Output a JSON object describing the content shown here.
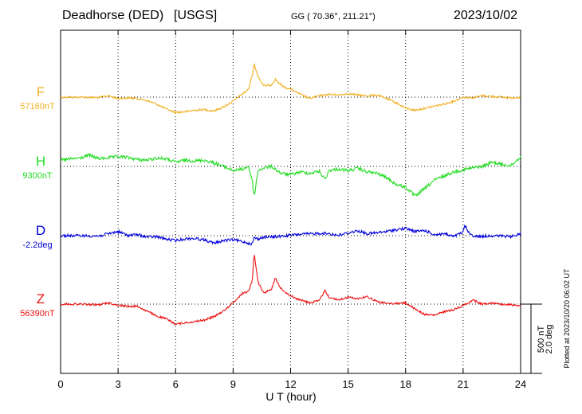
{
  "header": {
    "station": "Deadhorse (DED)",
    "source": "[USGS]",
    "coords": "GG ( 70.36°, 211.21°)",
    "date": "2023/10/02"
  },
  "plotted_note": "Plotted at 2023/10/20 06:02 UT",
  "scale": {
    "nt": "500 nT",
    "deg": "2.0 deg"
  },
  "colors": {
    "F": "#f0b020",
    "H": "#22dd22",
    "D": "#0000dd",
    "Z": "#ee1111"
  },
  "chart_data": {
    "type": "line",
    "xlabel": "U T (hour)",
    "xlim": [
      0,
      24
    ],
    "xticks": [
      "0",
      "3",
      "6",
      "9",
      "12",
      "15",
      "18",
      "21",
      "24"
    ],
    "scale_bar": {
      "value_nT": 500,
      "value_deg": 2.0
    },
    "series": [
      {
        "name": "F",
        "baseline_label": "57160nT",
        "baseline": 57160,
        "x": [
          0,
          1,
          2,
          2.5,
          3,
          3.5,
          4,
          4.5,
          5,
          5.5,
          6,
          6.5,
          7,
          7.5,
          8,
          8.5,
          9,
          9.5,
          9.8,
          10,
          10.1,
          10.3,
          10.6,
          11,
          11.2,
          11.4,
          11.7,
          12,
          12.5,
          13,
          13.5,
          14,
          14.5,
          15,
          15.5,
          16,
          16.5,
          17,
          17.5,
          18,
          18.5,
          19,
          19.5,
          20,
          20.5,
          21,
          21.5,
          22,
          22.5,
          23,
          23.5,
          24
        ],
        "values": [
          57160,
          57160,
          57157,
          57170,
          57150,
          57155,
          57150,
          57135,
          57110,
          57075,
          57050,
          57055,
          57065,
          57070,
          57060,
          57090,
          57130,
          57185,
          57215,
          57320,
          57400,
          57310,
          57240,
          57250,
          57290,
          57260,
          57230,
          57220,
          57180,
          57150,
          57170,
          57180,
          57175,
          57185,
          57175,
          57170,
          57175,
          57150,
          57120,
          57080,
          57065,
          57080,
          57095,
          57110,
          57130,
          57160,
          57155,
          57170,
          57165,
          57160,
          57155,
          57160
        ]
      },
      {
        "name": "H",
        "baseline_label": "9300nT",
        "baseline": 9300,
        "x": [
          0,
          1,
          1.5,
          2,
          3,
          3.5,
          4,
          4.5,
          5,
          5.5,
          6,
          6.5,
          7,
          7.5,
          8,
          8.5,
          9,
          9.5,
          9.8,
          10,
          10.1,
          10.3,
          10.6,
          11,
          11.5,
          12,
          12.5,
          13,
          13.5,
          13.8,
          14,
          14.5,
          15,
          15.5,
          16,
          16.5,
          17,
          17.5,
          18,
          18.5,
          19,
          19.5,
          20,
          20.5,
          21,
          21.5,
          22,
          22.5,
          23,
          23.5,
          24
        ],
        "values": [
          9345,
          9360,
          9380,
          9355,
          9370,
          9365,
          9350,
          9345,
          9360,
          9355,
          9330,
          9345,
          9340,
          9345,
          9325,
          9300,
          9270,
          9280,
          9300,
          9200,
          9080,
          9270,
          9290,
          9300,
          9250,
          9240,
          9260,
          9250,
          9265,
          9205,
          9270,
          9280,
          9270,
          9285,
          9260,
          9250,
          9220,
          9170,
          9150,
          9085,
          9140,
          9200,
          9230,
          9260,
          9275,
          9290,
          9300,
          9330,
          9315,
          9305,
          9370
        ]
      },
      {
        "name": "D",
        "baseline_label": "-2.2deg",
        "baseline": -2.2,
        "x": [
          0,
          1,
          2,
          3,
          3.5,
          4,
          4.5,
          5,
          5.5,
          6,
          6.5,
          7,
          7.5,
          8,
          8.5,
          9,
          9.5,
          10,
          10.1,
          10.3,
          10.6,
          11,
          11.5,
          12,
          12.5,
          13,
          13.5,
          14,
          14.5,
          15,
          15.5,
          16,
          16.5,
          17,
          17.5,
          18,
          18.5,
          19,
          19.5,
          20,
          20.5,
          21,
          21.1,
          21.3,
          21.6,
          22,
          22.5,
          23,
          23.5,
          24
        ],
        "values": [
          -2.2,
          -2.2,
          -2.21,
          -2.08,
          -2.19,
          -2.17,
          -2.24,
          -2.23,
          -2.3,
          -2.34,
          -2.29,
          -2.28,
          -2.32,
          -2.42,
          -2.34,
          -2.32,
          -2.37,
          -2.44,
          -2.25,
          -2.3,
          -2.24,
          -2.24,
          -2.22,
          -2.19,
          -2.16,
          -2.15,
          -2.13,
          -2.14,
          -2.19,
          -2.12,
          -2.06,
          -2.14,
          -2.12,
          -2.08,
          -2.03,
          -1.99,
          -2.08,
          -2.05,
          -2.17,
          -2.14,
          -2.23,
          -2.1,
          -1.9,
          -2.13,
          -2.22,
          -2.22,
          -2.2,
          -2.21,
          -2.23,
          -2.14
        ]
      },
      {
        "name": "Z",
        "baseline_label": "56390nT",
        "baseline": 56390,
        "x": [
          0,
          1,
          2,
          2.5,
          3,
          3.5,
          4,
          4.5,
          5,
          5.5,
          6,
          6.5,
          7,
          7.5,
          8,
          8.5,
          9,
          9.5,
          9.8,
          10,
          10.1,
          10.3,
          10.6,
          11,
          11.2,
          11.4,
          11.7,
          12,
          12.5,
          13,
          13.5,
          13.8,
          14,
          14.5,
          15,
          15.5,
          16,
          16.5,
          17,
          17.5,
          18,
          18.5,
          19,
          19.5,
          20,
          20.5,
          21,
          21.5,
          22,
          22.5,
          23,
          23.5,
          24
        ],
        "values": [
          56390,
          56390,
          56385,
          56400,
          56380,
          56375,
          56375,
          56340,
          56305,
          56285,
          56245,
          56255,
          56265,
          56275,
          56300,
          56340,
          56400,
          56470,
          56480,
          56560,
          56760,
          56550,
          56470,
          56500,
          56580,
          56520,
          56480,
          56450,
          56420,
          56400,
          56415,
          56490,
          56440,
          56420,
          56440,
          56430,
          56445,
          56410,
          56395,
          56395,
          56400,
          56355,
          56315,
          56310,
          56335,
          56350,
          56380,
          56420,
          56390,
          56400,
          56390,
          56385,
          56380
        ]
      }
    ]
  }
}
